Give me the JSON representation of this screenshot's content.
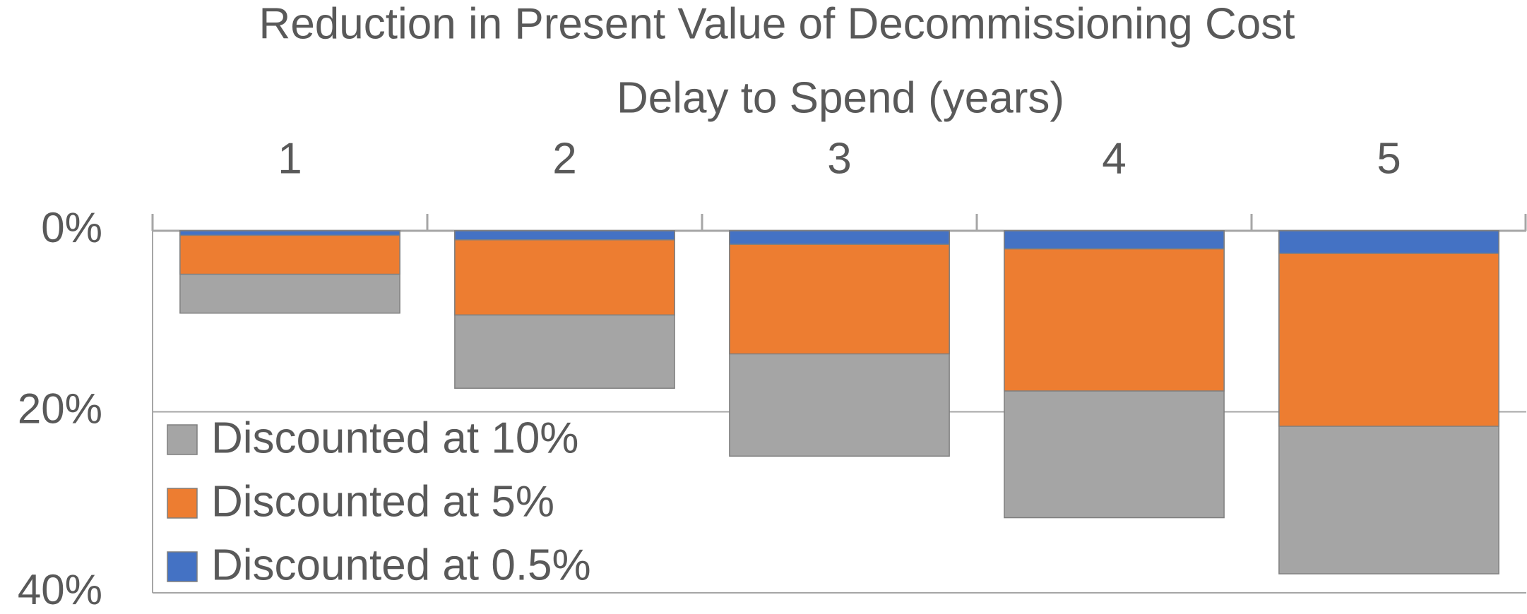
{
  "chart_data": {
    "type": "bar",
    "barmode": "overlay",
    "title": "Reduction in Present Value of Decommissioning Cost",
    "x_label": "Delay to Spend (years)",
    "categories": [
      "1",
      "2",
      "3",
      "4",
      "5"
    ],
    "series": [
      {
        "name": "Discounted at 10%",
        "color": "#a5a5a5",
        "values": [
          9.1,
          17.4,
          24.9,
          31.7,
          37.9
        ]
      },
      {
        "name": "Discounted at 5%",
        "color": "#ed7d31",
        "values": [
          4.8,
          9.3,
          13.6,
          17.7,
          21.6
        ]
      },
      {
        "name": "Discounted at 0.5%",
        "color": "#4472c4",
        "values": [
          0.5,
          1.0,
          1.5,
          2.0,
          2.5
        ]
      }
    ],
    "ylim": [
      0,
      40
    ],
    "y_inverted": true,
    "yticks": [
      {
        "value": 0,
        "label": "0%"
      },
      {
        "value": 20,
        "label": "20%"
      },
      {
        "value": 40,
        "label": "40%"
      }
    ],
    "grid": true,
    "legend": "bottom-left"
  }
}
